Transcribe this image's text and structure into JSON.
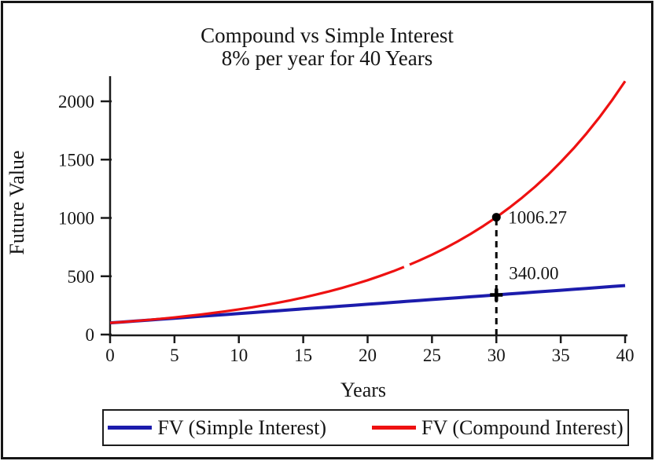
{
  "title": {
    "line1": "Compound vs Simple Interest",
    "line2": "8% per year for 40 Years"
  },
  "colors": {
    "simple_line": "#1c1cac",
    "compound_line": "#ee1111",
    "axis": "#1a1a1a",
    "marker": "#000000",
    "text": "#151515"
  },
  "chart_data": {
    "type": "line",
    "title": "Compound vs Simple Interest",
    "subtitle": "8% per year for 40 Years",
    "xlabel": "Years",
    "ylabel": "Future Value",
    "xlim": [
      0,
      40
    ],
    "ylim": [
      0,
      2210
    ],
    "x_ticks": [
      0,
      5,
      10,
      15,
      20,
      25,
      30,
      35,
      40
    ],
    "y_ticks": [
      0,
      500,
      1000,
      1500,
      2000
    ],
    "grid": false,
    "legend_position": "bottom",
    "x": [
      0,
      1,
      2,
      3,
      4,
      5,
      6,
      7,
      8,
      9,
      10,
      11,
      12,
      13,
      14,
      15,
      16,
      17,
      18,
      19,
      20,
      21,
      22,
      23,
      24,
      25,
      26,
      27,
      28,
      29,
      30,
      31,
      32,
      33,
      34,
      35,
      36,
      37,
      38,
      39,
      40
    ],
    "series": [
      {
        "name": "FV (Simple Interest)",
        "color": "#1c1cac",
        "values": [
          100,
          108,
          116,
          124,
          132,
          140,
          148,
          156,
          164,
          172,
          180,
          188,
          196,
          204,
          212,
          220,
          228,
          236,
          244,
          252,
          260,
          268,
          276,
          284,
          292,
          300,
          308,
          316,
          324,
          332,
          340,
          348,
          356,
          364,
          372,
          380,
          388,
          396,
          404,
          412,
          420
        ]
      },
      {
        "name": "FV (Compound Interest)",
        "color": "#ee1111",
        "values": [
          100,
          108,
          116.64,
          125.97,
          136.05,
          146.93,
          158.69,
          171.38,
          185.09,
          199.9,
          215.89,
          233.16,
          251.82,
          271.96,
          293.72,
          317.22,
          342.59,
          370,
          399.6,
          431.57,
          466.1,
          503.38,
          543.65,
          587.15,
          634.12,
          684.85,
          739.63,
          798.81,
          862.71,
          931.72,
          1006.27,
          1086.77,
          1173.71,
          1267.6,
          1369.02,
          1478.53,
          1596.82,
          1724.56,
          1862.52,
          2011.53,
          2172.45
        ]
      }
    ],
    "markers": [
      {
        "x": 30,
        "y": 1006.27,
        "label": "1006.27",
        "shape": "circle",
        "series": "FV (Compound Interest)"
      },
      {
        "x": 30,
        "y": 340,
        "label": "340.00",
        "shape": "plus",
        "series": "FV (Simple Interest)"
      }
    ],
    "dashed_line": {
      "x": 30,
      "y_from": 0,
      "y_to": 1006.27
    }
  },
  "legend": {
    "items": [
      {
        "label": "FV (Simple Interest)",
        "color": "#1c1cac"
      },
      {
        "label": "FV (Compound Interest)",
        "color": "#ee1111"
      }
    ]
  }
}
